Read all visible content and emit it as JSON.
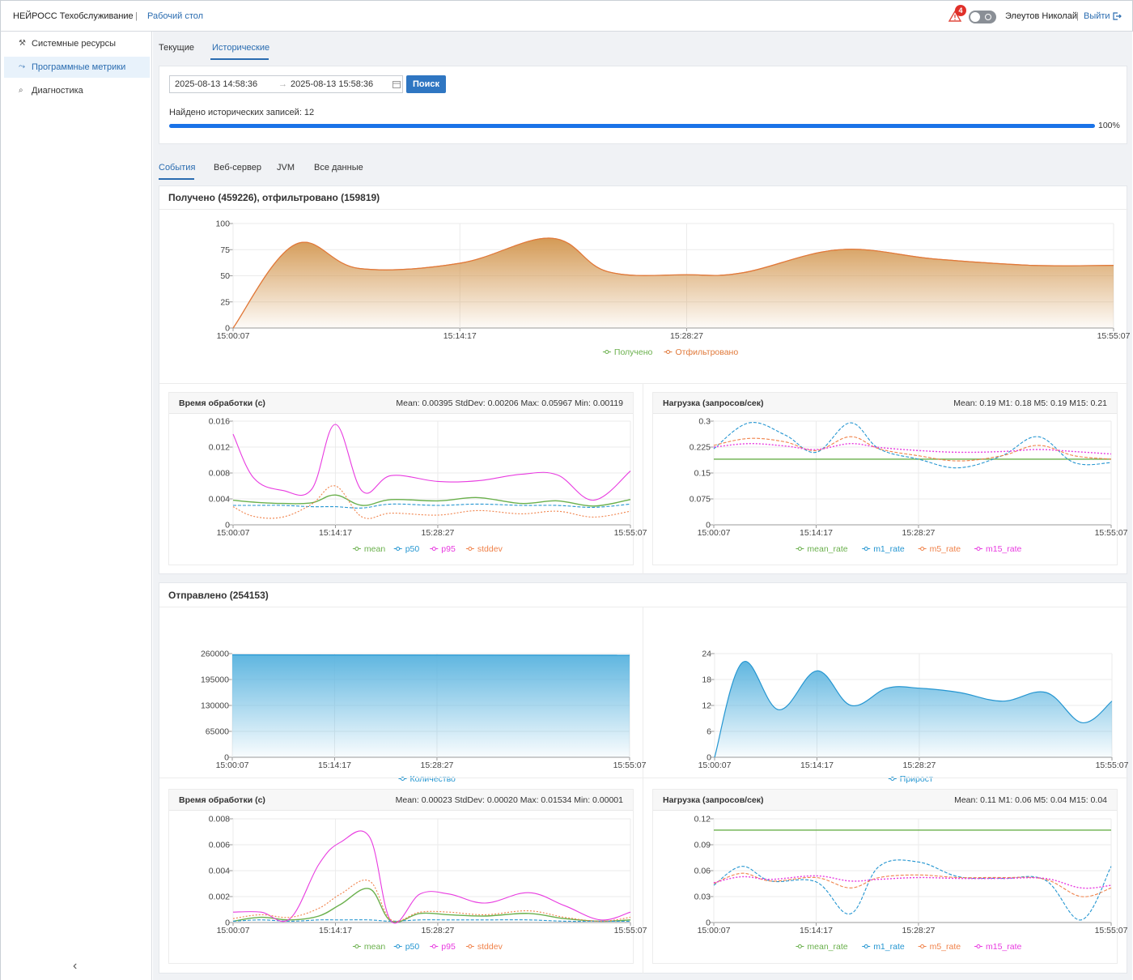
{
  "header": {
    "app_title": "НЕЙРОСС Техобслуживание",
    "separator": "|",
    "desktop_link": "Рабочий стол",
    "alert_count": "4",
    "user_name": "Элеутов Николай",
    "user_sep": "|",
    "logout": "Выйти"
  },
  "sidebar": {
    "items": [
      {
        "label": "Системные ресурсы",
        "icon": "wrench-icon"
      },
      {
        "label": "Программные метрики",
        "icon": "line-chart-icon"
      },
      {
        "label": "Диагностика",
        "icon": "search-icon"
      }
    ],
    "collapse": "‹"
  },
  "main": {
    "tabs": [
      "Текущие",
      "Исторические"
    ],
    "active_tab": "Исторические",
    "date_from": "2025-08-13 14:58:36",
    "date_arrow": "→",
    "date_to": "2025-08-13 15:58:36",
    "search_button": "Поиск",
    "found_text": "Найдено исторических записей: 12",
    "progress_percent": 100,
    "progress_label": "100%",
    "subtabs": [
      "События",
      "Веб-сервер",
      "JVM",
      "Все данные"
    ],
    "active_subtab": "События",
    "colors": {
      "accent": "#2a6cb0",
      "green": "#6ab04c",
      "blue": "#2596d1",
      "magenta": "#e83be0",
      "orange": "#f0824a",
      "brown": "#d4873d"
    }
  },
  "sections": {
    "received": {
      "title": "Получено (459226), отфильтровано (159819)"
    },
    "proc1": {
      "title": "Время обработки (с)",
      "stats": "Mean: 0.00395 StdDev: 0.00206 Max: 0.05967 Min: 0.00119"
    },
    "load1": {
      "title": "Нагрузка (запросов/сек)",
      "stats": "Mean: 0.19 M1: 0.18 M5: 0.19 M15: 0.21"
    },
    "sent": {
      "title": "Отправлено (254153)"
    },
    "proc2": {
      "title": "Время обработки (с)",
      "stats": "Mean: 0.00023 StdDev: 0.00020 Max: 0.01534 Min: 0.00001"
    },
    "load2": {
      "title": "Нагрузка (запросов/сек)",
      "stats": "Mean: 0.11 M1: 0.06 M5: 0.04 M15: 0.04"
    }
  },
  "chart_data": [
    {
      "id": "received",
      "type": "area",
      "x": [
        "15:00:07",
        "15:04:00",
        "15:08:00",
        "15:14:17",
        "15:20:00",
        "15:23:30",
        "15:28:27",
        "15:32:00",
        "15:38:00",
        "15:44:00",
        "15:50:00",
        "15:55:07"
      ],
      "xticks": [
        "15:00:07",
        "15:14:17",
        "15:28:27",
        "15:55:07"
      ],
      "yticks": [
        0,
        25,
        50,
        75,
        100
      ],
      "ylim": [
        0,
        100
      ],
      "series": [
        {
          "name": "Получено",
          "color": "#6ab04c",
          "values": [
            0,
            80,
            57,
            62,
            86,
            54,
            51,
            53,
            75,
            66,
            60,
            60
          ]
        },
        {
          "name": "Отфильтровано",
          "color": "#e0793a",
          "values": [
            0,
            80,
            57,
            62,
            86,
            54,
            51,
            53,
            75,
            66,
            60,
            60
          ]
        }
      ]
    },
    {
      "id": "proc1",
      "type": "line",
      "x": [
        "15:00:07",
        "15:03:00",
        "15:07:00",
        "15:11:00",
        "15:14:17",
        "15:18:00",
        "15:22:00",
        "15:28:27",
        "15:34:00",
        "15:40:00",
        "15:45:00",
        "15:50:00",
        "15:55:07"
      ],
      "xticks": [
        "15:00:07",
        "15:14:17",
        "15:28:27",
        "15:55:07"
      ],
      "yticks": [
        0,
        0.004,
        0.008,
        0.012,
        0.016
      ],
      "ylim": [
        0,
        0.016
      ],
      "series": [
        {
          "name": "mean",
          "color": "#6ab04c",
          "values": [
            0.0038,
            0.0035,
            0.0033,
            0.0034,
            0.0046,
            0.003,
            0.0039,
            0.0037,
            0.0042,
            0.0033,
            0.0037,
            0.0029,
            0.0039
          ]
        },
        {
          "name": "p50",
          "color": "#2596d1",
          "values": [
            0.003,
            0.003,
            0.003,
            0.0028,
            0.0028,
            0.0026,
            0.0032,
            0.003,
            0.0032,
            0.003,
            0.003,
            0.0027,
            0.0032
          ]
        },
        {
          "name": "p95",
          "color": "#e83be0",
          "values": [
            0.014,
            0.0072,
            0.0053,
            0.0055,
            0.0155,
            0.0052,
            0.0076,
            0.0067,
            0.0068,
            0.0078,
            0.0077,
            0.0038,
            0.0083
          ]
        },
        {
          "name": "stddev",
          "color": "#f0824a",
          "values": [
            0.0028,
            0.0013,
            0.0012,
            0.0032,
            0.006,
            0.0012,
            0.0018,
            0.0015,
            0.0022,
            0.0017,
            0.0021,
            0.0012,
            0.0021
          ]
        }
      ]
    },
    {
      "id": "load1",
      "type": "line",
      "x": [
        "15:00:07",
        "15:05:00",
        "15:10:00",
        "15:14:17",
        "15:19:00",
        "15:23:00",
        "15:28:27",
        "15:34:00",
        "15:40:00",
        "15:45:00",
        "15:50:00",
        "15:55:07"
      ],
      "xticks": [
        "15:00:07",
        "15:14:17",
        "15:28:27",
        "15:55:07"
      ],
      "yticks": [
        0,
        0.075,
        0.15,
        0.225,
        0.3
      ],
      "ylim": [
        0,
        0.3
      ],
      "series": [
        {
          "name": "mean_rate",
          "color": "#6ab04c",
          "values": [
            0.19,
            0.19,
            0.19,
            0.19,
            0.19,
            0.19,
            0.19,
            0.19,
            0.19,
            0.19,
            0.19,
            0.19
          ]
        },
        {
          "name": "m1_rate",
          "color": "#2596d1",
          "values": [
            0.22,
            0.295,
            0.26,
            0.21,
            0.295,
            0.22,
            0.19,
            0.165,
            0.2,
            0.255,
            0.18,
            0.18
          ]
        },
        {
          "name": "m5_rate",
          "color": "#f0824a",
          "values": [
            0.23,
            0.25,
            0.24,
            0.215,
            0.255,
            0.22,
            0.2,
            0.185,
            0.2,
            0.23,
            0.2,
            0.19
          ]
        },
        {
          "name": "m15_rate",
          "color": "#e83be0",
          "values": [
            0.225,
            0.235,
            0.228,
            0.218,
            0.235,
            0.224,
            0.215,
            0.21,
            0.212,
            0.218,
            0.212,
            0.205
          ]
        }
      ]
    },
    {
      "id": "sent_count",
      "type": "area",
      "x": [
        "15:00:07",
        "15:55:07"
      ],
      "xticks": [
        "15:00:07",
        "15:14:17",
        "15:28:27",
        "15:55:07"
      ],
      "yticks": [
        0,
        65000,
        130000,
        195000,
        260000
      ],
      "ylim": [
        0,
        260000
      ],
      "series": [
        {
          "name": "Количество",
          "color": "#2596d1",
          "values": [
            257000,
            256000
          ]
        }
      ]
    },
    {
      "id": "sent_growth",
      "type": "area",
      "x": [
        "15:00:07",
        "15:04:00",
        "15:09:00",
        "15:14:17",
        "15:19:00",
        "15:24:00",
        "15:28:27",
        "15:34:00",
        "15:40:00",
        "15:46:00",
        "15:51:00",
        "15:55:07"
      ],
      "xticks": [
        "15:00:07",
        "15:14:17",
        "15:28:27",
        "15:55:07"
      ],
      "yticks": [
        0,
        6,
        12,
        18,
        24
      ],
      "ylim": [
        0,
        24
      ],
      "series": [
        {
          "name": "Прирост",
          "color": "#2596d1",
          "values": [
            0,
            22,
            11,
            20,
            12,
            16,
            16,
            15,
            13,
            15,
            8,
            13
          ]
        }
      ]
    },
    {
      "id": "proc2",
      "type": "line",
      "x": [
        "15:00:07",
        "15:04:00",
        "15:08:00",
        "15:12:00",
        "15:15:00",
        "15:19:00",
        "15:22:00",
        "15:26:00",
        "15:30:00",
        "15:35:00",
        "15:41:00",
        "15:46:00",
        "15:51:00",
        "15:55:07"
      ],
      "xticks": [
        "15:00:07",
        "15:14:17",
        "15:28:27",
        "15:55:07"
      ],
      "yticks": [
        0,
        0.002,
        0.004,
        0.006,
        0.008
      ],
      "ylim": [
        0,
        0.008
      ],
      "series": [
        {
          "name": "mean",
          "color": "#6ab04c",
          "values": [
            0.0001,
            0.0004,
            0.0002,
            0.0005,
            0.0014,
            0.0026,
            0.0001,
            0.0007,
            0.0006,
            0.0005,
            0.0007,
            0.0003,
            0.0001,
            0.0002
          ]
        },
        {
          "name": "p50",
          "color": "#2596d1",
          "values": [
            0.0001,
            0.0002,
            0.0001,
            0.0002,
            0.0002,
            0.0002,
            0.0001,
            0.0002,
            0.0002,
            0.0002,
            0.0002,
            0.0001,
            0.0001,
            0.0001
          ]
        },
        {
          "name": "p95",
          "color": "#e83be0",
          "values": [
            0.0008,
            0.0008,
            0.0003,
            0.0045,
            0.0062,
            0.0066,
            0.0001,
            0.0022,
            0.0022,
            0.0015,
            0.0023,
            0.0013,
            0.0002,
            0.0008
          ]
        },
        {
          "name": "stddev",
          "color": "#f0824a",
          "values": [
            0.0003,
            0.0006,
            0.0004,
            0.0011,
            0.0022,
            0.0032,
            0.0002,
            0.0008,
            0.0008,
            0.0006,
            0.0009,
            0.0004,
            0.0001,
            0.0004
          ]
        }
      ]
    },
    {
      "id": "load2",
      "type": "line",
      "x": [
        "15:00:07",
        "15:04:00",
        "15:08:00",
        "15:14:17",
        "15:19:00",
        "15:23:00",
        "15:28:27",
        "15:34:00",
        "15:40:00",
        "15:46:00",
        "15:51:00",
        "15:55:07"
      ],
      "xticks": [
        "15:00:07",
        "15:14:17",
        "15:28:27",
        "15:55:07"
      ],
      "yticks": [
        0,
        0.03,
        0.06,
        0.09,
        0.12
      ],
      "ylim": [
        0,
        0.12
      ],
      "series": [
        {
          "name": "mean_rate",
          "color": "#6ab04c",
          "values": [
            0.107,
            0.107,
            0.107,
            0.107,
            0.107,
            0.107,
            0.107,
            0.107,
            0.107,
            0.107,
            0.107,
            0.107
          ]
        },
        {
          "name": "m1_rate",
          "color": "#2596d1",
          "values": [
            0.043,
            0.065,
            0.048,
            0.047,
            0.01,
            0.065,
            0.07,
            0.053,
            0.051,
            0.049,
            0.003,
            0.065
          ]
        },
        {
          "name": "m5_rate",
          "color": "#f0824a",
          "values": [
            0.045,
            0.057,
            0.048,
            0.052,
            0.04,
            0.052,
            0.055,
            0.052,
            0.052,
            0.05,
            0.03,
            0.04
          ]
        },
        {
          "name": "m15_rate",
          "color": "#e83be0",
          "values": [
            0.046,
            0.053,
            0.05,
            0.054,
            0.048,
            0.05,
            0.052,
            0.051,
            0.051,
            0.051,
            0.04,
            0.043
          ]
        }
      ]
    }
  ]
}
